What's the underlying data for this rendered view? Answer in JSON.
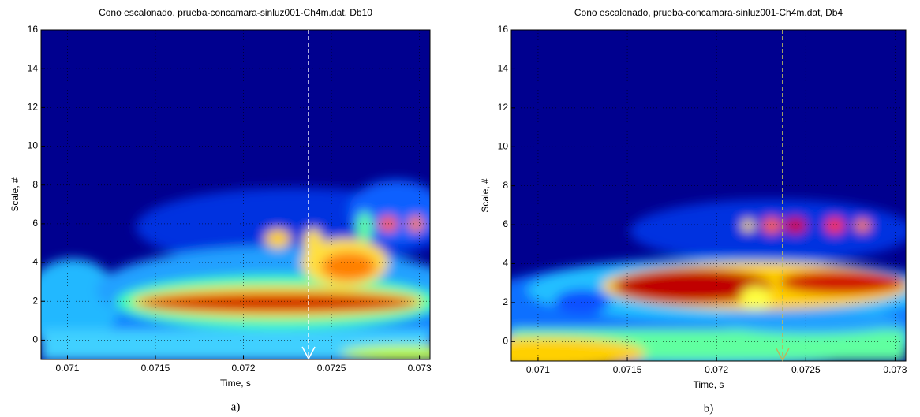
{
  "chart_data": [
    {
      "type": "heatmap",
      "title": "Cono escalonado, prueba-concamara-sinluz001-Ch4m.dat, Db10",
      "xlabel": "Time, s",
      "ylabel": "Scale, #",
      "xlim": [
        0.07085,
        0.07306
      ],
      "ylim": [
        -1,
        16
      ],
      "xticks": [
        0.071,
        0.0715,
        0.072,
        0.0725,
        0.073
      ],
      "yticks": [
        0,
        2,
        4,
        6,
        8,
        10,
        12,
        14,
        16
      ],
      "grid": true,
      "marker_x": 0.07237,
      "marker_color": "#ffffff",
      "caption": "a)"
    },
    {
      "type": "heatmap",
      "title": "Cono escalonado, prueba-concamara-sinluz001-Ch4m.dat, Db4",
      "xlabel": "Time, s",
      "ylabel": "Scale, #",
      "xlim": [
        0.07085,
        0.07306
      ],
      "ylim": [
        -1,
        16
      ],
      "xticks": [
        0.071,
        0.0715,
        0.072,
        0.0725,
        0.073
      ],
      "yticks": [
        0,
        2,
        4,
        6,
        8,
        10,
        12,
        14,
        16
      ],
      "grid": true,
      "marker_x": 0.07237,
      "marker_color": "#b8b860",
      "caption": "b)"
    }
  ]
}
